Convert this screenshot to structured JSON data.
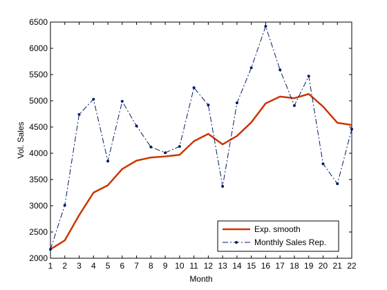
{
  "chart_data": {
    "type": "line",
    "title": "",
    "xlabel": "Month",
    "ylabel": "Vol. Sales",
    "xlim": [
      1,
      22
    ],
    "ylim": [
      2000,
      6500
    ],
    "xticks": [
      1,
      2,
      3,
      4,
      5,
      6,
      7,
      8,
      9,
      10,
      11,
      12,
      13,
      14,
      15,
      16,
      17,
      18,
      19,
      20,
      21,
      22
    ],
    "yticks": [
      2000,
      2500,
      3000,
      3500,
      4000,
      4500,
      5000,
      5500,
      6000,
      6500
    ],
    "grid": false,
    "legend_position": "bottom-right",
    "x": [
      1,
      2,
      3,
      4,
      5,
      6,
      7,
      8,
      9,
      10,
      11,
      12,
      13,
      14,
      15,
      16,
      17,
      18,
      19,
      20,
      21,
      22
    ],
    "series": [
      {
        "name": "Exp. smooth",
        "color": "#cc3300",
        "style": "solid",
        "marker": "none",
        "values": [
          2170,
          2340,
          2820,
          3250,
          3390,
          3700,
          3860,
          3920,
          3940,
          3970,
          4230,
          4370,
          4170,
          4330,
          4590,
          4950,
          5080,
          5050,
          5130,
          4890,
          4580,
          4540
        ]
      },
      {
        "name": "Monthly Sales Rep.",
        "color": "#001a66",
        "style": "dashdot",
        "marker": "dot",
        "values": [
          2170,
          3010,
          4740,
          5030,
          3850,
          4990,
          4520,
          4120,
          4010,
          4130,
          5250,
          4920,
          3370,
          4960,
          5630,
          6420,
          5590,
          4910,
          5470,
          3800,
          3420,
          4460
        ]
      }
    ]
  }
}
